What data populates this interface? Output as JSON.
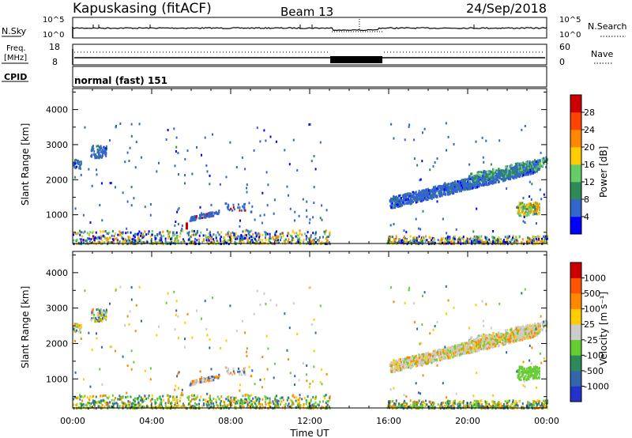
{
  "header": {
    "station": "Kapuskasing (fitACF)",
    "beam": "Beam 13",
    "date": "24/Sep/2018"
  },
  "noise_panel": {
    "left_label": "N.Sky",
    "right_label": "N.Search",
    "left_ticks": [
      "10^5",
      "10^0"
    ],
    "right_ticks": [
      "10^5",
      "10^0"
    ]
  },
  "freq_panel": {
    "left_label_1": "Freq.",
    "left_label_2": "[MHz]",
    "right_label": "Nave",
    "left_ticks": [
      "18",
      "8"
    ],
    "right_ticks": [
      "60",
      "0"
    ]
  },
  "cpid": {
    "label": "CPID",
    "value": "normal (fast) 151"
  },
  "chart_data": [
    {
      "type": "heatmap",
      "name": "power",
      "ylabel": "Slant Range [km]",
      "ylim": [
        180,
        4600
      ],
      "yticks": [
        "1000",
        "2000",
        "3000",
        "4000"
      ],
      "xlim": [
        0,
        24
      ],
      "colorbar": {
        "label": "Power [dB]",
        "ticks": [
          "4",
          "8",
          "12",
          "16",
          "20",
          "24",
          "28"
        ],
        "colors": [
          "#0000ff",
          "#3366cc",
          "#2e8b57",
          "#66cc66",
          "#ffcc00",
          "#ff8800",
          "#ff4400",
          "#cc0000"
        ]
      }
    },
    {
      "type": "heatmap",
      "name": "velocity",
      "ylabel": "Slant Range [km]",
      "ylim": [
        180,
        4600
      ],
      "yticks": [
        "1000",
        "2000",
        "3000",
        "4000"
      ],
      "xlim": [
        0,
        24
      ],
      "colorbar": {
        "label": "Velocity [m s⁻¹]",
        "ticks": [
          "1000",
          "500",
          "100",
          "25",
          "-25",
          "-100",
          "-500",
          "-1000"
        ],
        "colors": [
          "#2233cc",
          "#3366aa",
          "#2e8b57",
          "#66cc33",
          "#cccccc",
          "#ffcc00",
          "#ff8800",
          "#ff5500",
          "#cc0000"
        ]
      }
    }
  ],
  "x_axis": {
    "ticks": [
      "00:00",
      "04:00",
      "08:00",
      "12:00",
      "16:00",
      "20:00",
      "00:00"
    ],
    "label": "Time UT"
  }
}
